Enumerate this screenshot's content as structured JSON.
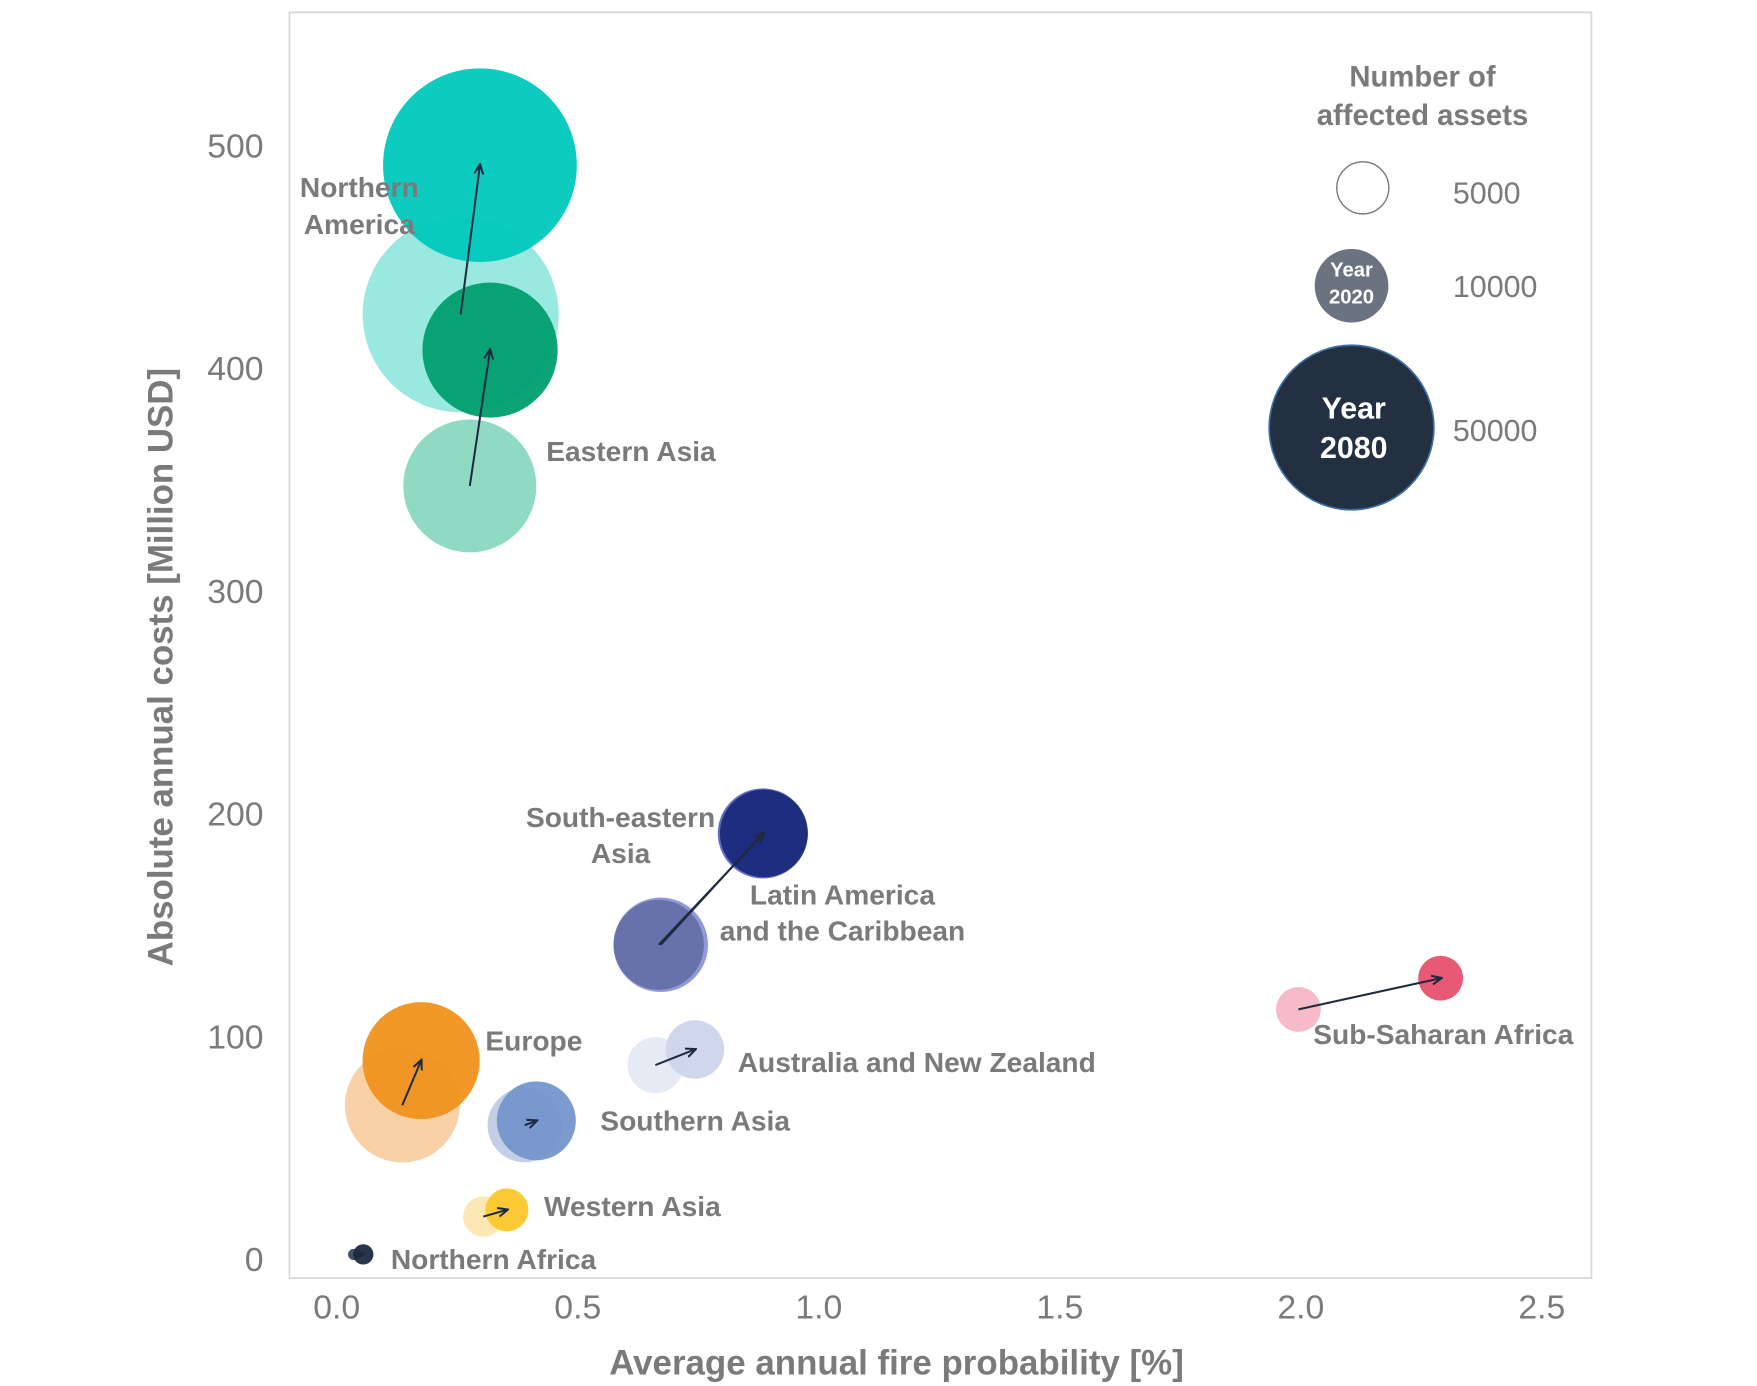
{
  "chart_data": {
    "type": "scatter",
    "subtype": "bubble",
    "xlabel": "Average annual fire probability [%]",
    "ylabel": "Absolute annual costs [Million USD]",
    "xlim": [
      -0.1,
      2.6
    ],
    "ylim": [
      -8,
      560
    ],
    "xticks": [
      "0.0",
      "0.5",
      "1.0",
      "1.5",
      "2.0",
      "2.5"
    ],
    "xtick_values": [
      0,
      0.5,
      1.0,
      1.5,
      2.0,
      2.5
    ],
    "yticks": [
      "0",
      "100",
      "200",
      "300",
      "400",
      "500"
    ],
    "ytick_values": [
      0,
      100,
      200,
      300,
      400,
      500
    ],
    "grid": false,
    "size_variable": "Number of affected assets",
    "legend": {
      "title_line1": "Number of",
      "title_line2": "affected assets",
      "placement": "top-right",
      "sizes": [
        {
          "value": "5000",
          "assets": 5000
        },
        {
          "value": "10000",
          "assets": 10000,
          "text1": "Year",
          "text2": "2020"
        },
        {
          "value": "50000",
          "assets": 50000,
          "text1": "Year",
          "text2": "2080"
        }
      ]
    },
    "series": [
      {
        "name": "Northern America",
        "label1": "Northern",
        "label2": "America",
        "color2020": "#94e8df",
        "color2080": "#00c8bc",
        "y2020": {
          "x": 0.257,
          "y": 424,
          "assets": 70800
        },
        "y2080": {
          "x": 0.297,
          "y": 491,
          "assets": 69200
        }
      },
      {
        "name": "Eastern Asia",
        "label1": "Eastern Asia",
        "color2020": "#8ad8c0",
        "color2080": "#009e6e",
        "y2020": {
          "x": 0.276,
          "y": 347,
          "assets": 32600
        },
        "y2080": {
          "x": 0.318,
          "y": 408,
          "assets": 33700
        }
      },
      {
        "name": "South-eastern Asia",
        "label1": "South-eastern",
        "label2": "Asia",
        "color2020": "#8c93d9",
        "color2080": "#5a64c4",
        "y2020": {
          "x": 0.672,
          "y": 141,
          "assets": 16500
        },
        "y2080": {
          "x": 0.884,
          "y": 191,
          "assets": 15000
        }
      },
      {
        "name": "Latin America and the Caribbean",
        "label1": "Latin America",
        "label2": "and the Caribbean",
        "color2020": "#6670a8",
        "color2080": "#1b2a7a",
        "y2020": {
          "x": 0.668,
          "y": 141,
          "assets": 15000
        },
        "y2080": {
          "x": 0.886,
          "y": 191,
          "assets": 14200
        }
      },
      {
        "name": "Sub-Saharan Africa",
        "label1": "Sub-Saharan Africa",
        "color2020": "#f5b6c5",
        "color2080": "#e7506e",
        "y2020": {
          "x": 1.995,
          "y": 112,
          "assets": 3700
        },
        "y2080": {
          "x": 2.29,
          "y": 126,
          "assets": 3700
        }
      },
      {
        "name": "Europe",
        "label1": "Europe",
        "color2020": "#f8cfa2",
        "color2080": "#f0921e",
        "y2020": {
          "x": 0.136,
          "y": 69,
          "assets": 24300
        },
        "y2080": {
          "x": 0.175,
          "y": 89,
          "assets": 25300
        }
      },
      {
        "name": "Australia and New Zealand",
        "label1": "Australia and New Zealand",
        "color2020": "#e5e9f3",
        "color2080": "#cdd4ea",
        "y2020": {
          "x": 0.661,
          "y": 87,
          "assets": 5800
        },
        "y2080": {
          "x": 0.743,
          "y": 94,
          "assets": 6300
        }
      },
      {
        "name": "Southern Asia",
        "label1": "Southern Asia",
        "color2020": "#c0cbe6",
        "color2080": "#7596cc",
        "y2020": {
          "x": 0.39,
          "y": 60,
          "assets": 10200
        },
        "y2080": {
          "x": 0.414,
          "y": 62,
          "assets": 11500
        }
      },
      {
        "name": "Western Asia",
        "label1": "Western Asia",
        "color2020": "#fde6b0",
        "color2080": "#fbc72a",
        "y2020": {
          "x": 0.304,
          "y": 19,
          "assets": 3000
        },
        "y2080": {
          "x": 0.353,
          "y": 22,
          "assets": 3400
        }
      },
      {
        "name": "Northern Africa",
        "label1": "Northern Africa",
        "color2020": "#3a4660",
        "color2080": "#1e2a40",
        "y2020": {
          "x": 0.035,
          "y": 2,
          "assets": 230
        },
        "y2080": {
          "x": 0.055,
          "y": 2,
          "assets": 760
        }
      }
    ]
  }
}
